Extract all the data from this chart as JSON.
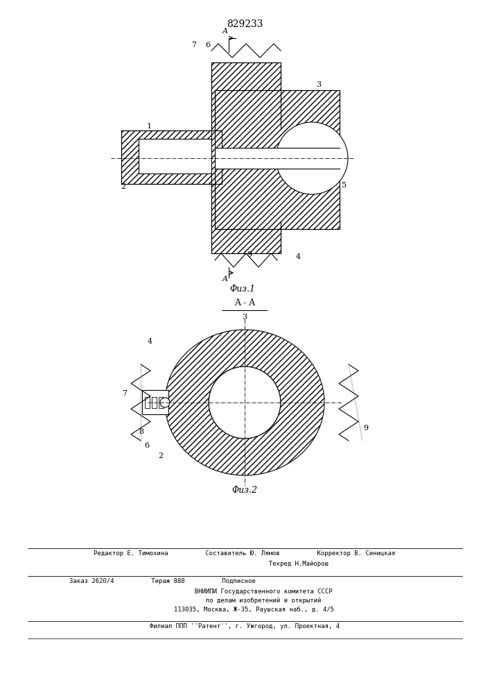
{
  "patent_number": "829233",
  "bg_color": "#ffffff",
  "line_color": "#000000",
  "hatch_color": "#000000",
  "fig1_caption": "Φиз.1",
  "fig2_caption": "Φиз.2",
  "section_label": "A - A",
  "footer_lines": [
    "Редактор Е. Тимохина          Составитель Ю. Лямов          Корректор В. Синицкая",
    "                             Техред Н.Майорош",
    "Заказ 2620/4          Тираж 888          Подписное",
    "          ВНИИПИ Государственного комитета СССР",
    "          по делам изобретений и открытий",
    "     113035, Москва, Ж-35, Раушская наб., д. 4/5",
    "Филиал ППП ''Pатент'', г. Ужгород, ул. Проектная, 4"
  ]
}
